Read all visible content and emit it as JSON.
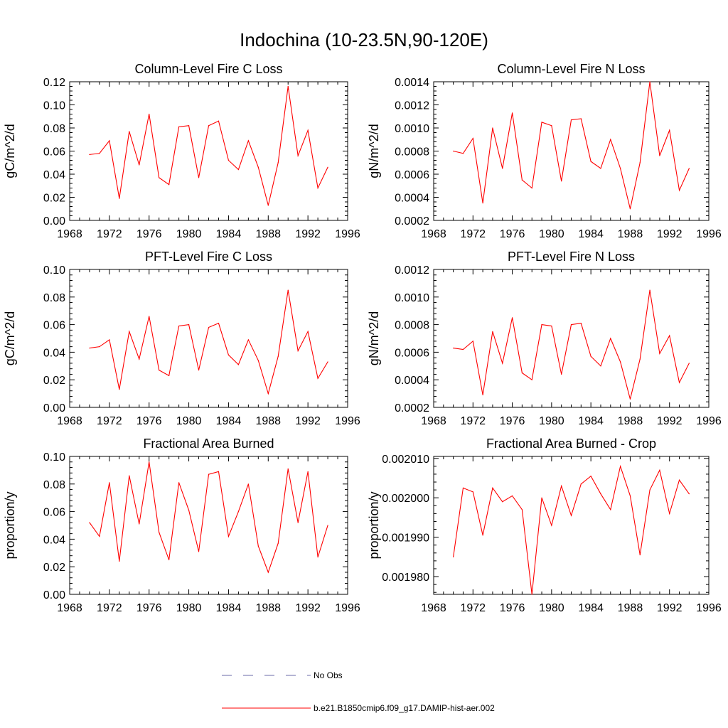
{
  "title": "Indochina (10-23.5N,90-120E)",
  "legend": [
    {
      "label": "No Obs",
      "color": "#6a6aa8",
      "style": "dashed"
    },
    {
      "label": "b.e21.B1850cmip6.f09_g17.DAMIP-hist-aer.002",
      "color": "#ff0000",
      "style": "solid"
    }
  ],
  "chart_data": [
    {
      "type": "line",
      "title": "Column-Level Fire C Loss",
      "ylabel": "gC/m^2/d",
      "xlim": [
        1968,
        1996
      ],
      "xticks": [
        1968,
        1972,
        1976,
        1980,
        1984,
        1988,
        1992,
        1996
      ],
      "ylim": [
        0.0,
        0.12
      ],
      "yticks": [
        0.0,
        0.02,
        0.04,
        0.06,
        0.08,
        0.1,
        0.12
      ],
      "ytick_labels": [
        "0.00",
        "0.02",
        "0.04",
        "0.06",
        "0.08",
        "0.10",
        "0.12"
      ],
      "x": [
        1970,
        1971,
        1972,
        1973,
        1974,
        1975,
        1976,
        1977,
        1978,
        1979,
        1980,
        1981,
        1982,
        1983,
        1984,
        1985,
        1986,
        1987,
        1988,
        1989,
        1990,
        1991,
        1992,
        1993,
        1994
      ],
      "series": [
        {
          "color": "#ff0000",
          "values": [
            0.057,
            0.058,
            0.069,
            0.019,
            0.077,
            0.048,
            0.092,
            0.037,
            0.031,
            0.081,
            0.082,
            0.037,
            0.082,
            0.086,
            0.052,
            0.044,
            0.069,
            0.046,
            0.013,
            0.05,
            0.116,
            0.056,
            0.078,
            0.028,
            0.046
          ]
        }
      ]
    },
    {
      "type": "line",
      "title": "Column-Level Fire N Loss",
      "ylabel": "gN/m^2/d",
      "xlim": [
        1968,
        1996
      ],
      "xticks": [
        1968,
        1972,
        1976,
        1980,
        1984,
        1988,
        1992,
        1996
      ],
      "ylim": [
        0.0002,
        0.0014
      ],
      "yticks": [
        0.0002,
        0.0004,
        0.0006,
        0.0008,
        0.001,
        0.0012,
        0.0014
      ],
      "ytick_labels": [
        "0.0002",
        "0.0004",
        "0.0006",
        "0.0008",
        "0.0010",
        "0.0012",
        "0.0014"
      ],
      "x": [
        1970,
        1971,
        1972,
        1973,
        1974,
        1975,
        1976,
        1977,
        1978,
        1979,
        1980,
        1981,
        1982,
        1983,
        1984,
        1985,
        1986,
        1987,
        1988,
        1989,
        1990,
        1991,
        1992,
        1993,
        1994
      ],
      "series": [
        {
          "color": "#ff0000",
          "values": [
            0.0008,
            0.00078,
            0.00091,
            0.00035,
            0.001,
            0.00065,
            0.00113,
            0.00055,
            0.00048,
            0.00105,
            0.00102,
            0.00054,
            0.00107,
            0.00108,
            0.00071,
            0.00065,
            0.0009,
            0.00065,
            0.0003,
            0.0007,
            0.0014,
            0.00076,
            0.00098,
            0.00046,
            0.00065
          ]
        }
      ]
    },
    {
      "type": "line",
      "title": "PFT-Level Fire C Loss",
      "ylabel": "gC/m^2/d",
      "xlim": [
        1968,
        1996
      ],
      "xticks": [
        1968,
        1972,
        1976,
        1980,
        1984,
        1988,
        1992,
        1996
      ],
      "ylim": [
        0.0,
        0.1
      ],
      "yticks": [
        0.0,
        0.02,
        0.04,
        0.06,
        0.08,
        0.1
      ],
      "ytick_labels": [
        "0.00",
        "0.02",
        "0.04",
        "0.06",
        "0.08",
        "0.10"
      ],
      "x": [
        1970,
        1971,
        1972,
        1973,
        1974,
        1975,
        1976,
        1977,
        1978,
        1979,
        1980,
        1981,
        1982,
        1983,
        1984,
        1985,
        1986,
        1987,
        1988,
        1989,
        1990,
        1991,
        1992,
        1993,
        1994
      ],
      "series": [
        {
          "color": "#ff0000",
          "values": [
            0.043,
            0.044,
            0.049,
            0.013,
            0.055,
            0.035,
            0.066,
            0.027,
            0.023,
            0.059,
            0.06,
            0.027,
            0.058,
            0.061,
            0.038,
            0.031,
            0.049,
            0.034,
            0.01,
            0.037,
            0.085,
            0.041,
            0.055,
            0.021,
            0.033
          ]
        }
      ]
    },
    {
      "type": "line",
      "title": "PFT-Level Fire N Loss",
      "ylabel": "gN/m^2/d",
      "xlim": [
        1968,
        1996
      ],
      "xticks": [
        1968,
        1972,
        1976,
        1980,
        1984,
        1988,
        1992,
        1996
      ],
      "ylim": [
        0.0002,
        0.0012
      ],
      "yticks": [
        0.0002,
        0.0004,
        0.0006,
        0.0008,
        0.001,
        0.0012
      ],
      "ytick_labels": [
        "0.0002",
        "0.0004",
        "0.0006",
        "0.0008",
        "0.0010",
        "0.0012"
      ],
      "x": [
        1970,
        1971,
        1972,
        1973,
        1974,
        1975,
        1976,
        1977,
        1978,
        1979,
        1980,
        1981,
        1982,
        1983,
        1984,
        1985,
        1986,
        1987,
        1988,
        1989,
        1990,
        1991,
        1992,
        1993,
        1994
      ],
      "series": [
        {
          "color": "#ff0000",
          "values": [
            0.00063,
            0.00062,
            0.00068,
            0.00029,
            0.00075,
            0.00052,
            0.00085,
            0.00045,
            0.0004,
            0.0008,
            0.00079,
            0.00044,
            0.0008,
            0.00081,
            0.00057,
            0.0005,
            0.0007,
            0.00053,
            0.00026,
            0.00055,
            0.00105,
            0.00059,
            0.00072,
            0.00038,
            0.00052
          ]
        }
      ]
    },
    {
      "type": "line",
      "title": "Fractional Area Burned",
      "ylabel": "proportion/y",
      "xlim": [
        1968,
        1996
      ],
      "xticks": [
        1968,
        1972,
        1976,
        1980,
        1984,
        1988,
        1992,
        1996
      ],
      "ylim": [
        0.0,
        0.1
      ],
      "yticks": [
        0.0,
        0.02,
        0.04,
        0.06,
        0.08,
        0.1
      ],
      "ytick_labels": [
        "0.00",
        "0.02",
        "0.04",
        "0.06",
        "0.08",
        "0.10"
      ],
      "x": [
        1970,
        1971,
        1972,
        1973,
        1974,
        1975,
        1976,
        1977,
        1978,
        1979,
        1980,
        1981,
        1982,
        1983,
        1984,
        1985,
        1986,
        1987,
        1988,
        1989,
        1990,
        1991,
        1992,
        1993,
        1994
      ],
      "series": [
        {
          "color": "#ff0000",
          "values": [
            0.052,
            0.042,
            0.081,
            0.024,
            0.086,
            0.051,
            0.096,
            0.045,
            0.025,
            0.081,
            0.061,
            0.031,
            0.087,
            0.089,
            0.042,
            0.06,
            0.08,
            0.035,
            0.016,
            0.037,
            0.091,
            0.052,
            0.089,
            0.027,
            0.05
          ]
        }
      ]
    },
    {
      "type": "line",
      "title": "Fractional Area Burned - Crop",
      "ylabel": "proportion/y",
      "xlim": [
        1968,
        1996
      ],
      "xticks": [
        1968,
        1972,
        1976,
        1980,
        1984,
        1988,
        1992,
        1996
      ],
      "ylim": [
        0.0019755,
        0.0020105
      ],
      "yticks": [
        0.00198,
        0.00199,
        0.002,
        0.00201
      ],
      "ytick_labels": [
        "0.001980",
        "0.001990",
        "0.002000",
        "0.002010"
      ],
      "x": [
        1970,
        1971,
        1972,
        1973,
        1974,
        1975,
        1976,
        1977,
        1978,
        1979,
        1980,
        1981,
        1982,
        1983,
        1984,
        1985,
        1986,
        1987,
        1988,
        1989,
        1990,
        1991,
        1992,
        1993,
        1994
      ],
      "series": [
        {
          "color": "#ff0000",
          "values": [
            0.001985,
            0.0020025,
            0.0020015,
            0.0019905,
            0.0020025,
            0.001999,
            0.0020005,
            0.001997,
            0.0019755,
            0.002,
            0.001993,
            0.002003,
            0.0019955,
            0.0020035,
            0.0020055,
            0.002001,
            0.001997,
            0.002008,
            0.0020005,
            0.0019855,
            0.002002,
            0.002007,
            0.001996,
            0.0020045,
            0.002001
          ]
        }
      ]
    }
  ]
}
